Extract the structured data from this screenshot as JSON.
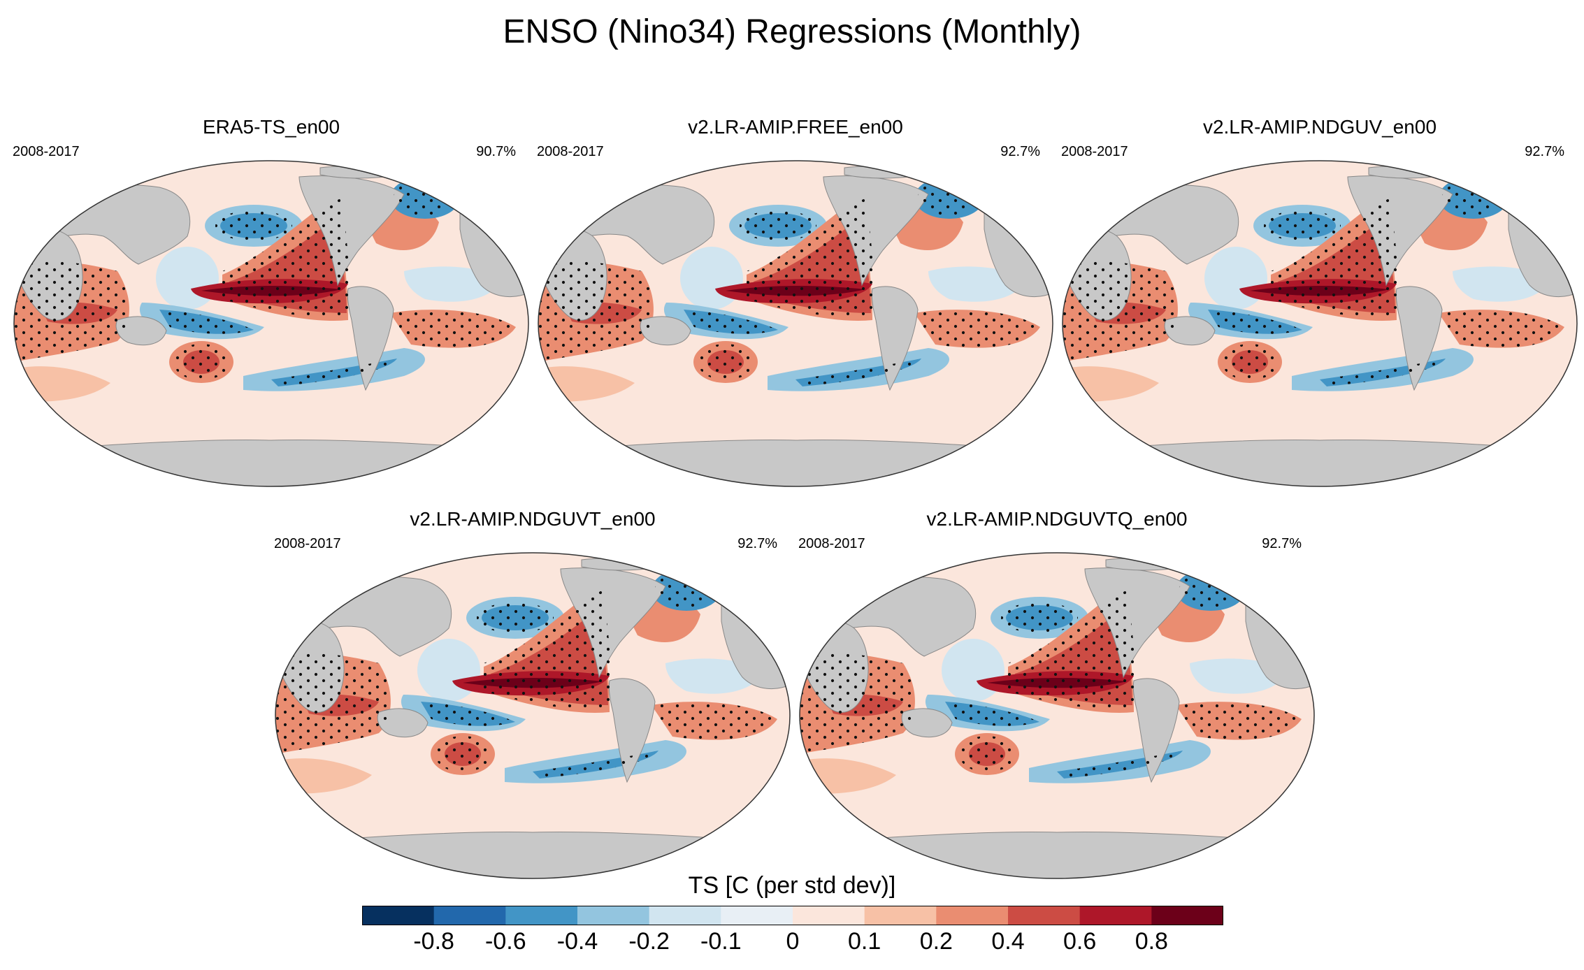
{
  "title": "ENSO (Nino34) Regressions (Monthly)",
  "panels": [
    {
      "name": "ERA5-TS_en00",
      "period": "2008-2017",
      "pct": "90.7%"
    },
    {
      "name": "v2.LR-AMIP.FREE_en00",
      "period": "2008-2017",
      "pct": "92.7%"
    },
    {
      "name": "v2.LR-AMIP.NDGUV_en00",
      "period": "2008-2017",
      "pct": "92.7%"
    },
    {
      "name": "v2.LR-AMIP.NDGUVT_en00",
      "period": "2008-2017",
      "pct": "92.7%"
    },
    {
      "name": "v2.LR-AMIP.NDGUVTQ_en00",
      "period": "2008-2017",
      "pct": "92.7%"
    }
  ],
  "colorbar": {
    "label": "TS [C (per std dev)]",
    "ticks": [
      "-0.8",
      "-0.6",
      "-0.4",
      "-0.2",
      "-0.1",
      "0",
      "0.1",
      "0.2",
      "0.4",
      "0.6",
      "0.8"
    ],
    "colors": [
      "#06305f",
      "#2268ac",
      "#4295c6",
      "#93c5df",
      "#d1e5f0",
      "#e8eff5",
      "#fbe6dc",
      "#f7c1a6",
      "#ea8d71",
      "#cc4c44",
      "#ae1729",
      "#6c0019"
    ]
  },
  "chart_data": {
    "type": "heatmap",
    "title": "ENSO (Nino34) Regressions (Monthly)",
    "variable": "TS [C (per std dev)]",
    "projection": "Robinson-like global map",
    "levels": [
      -0.8,
      -0.6,
      -0.4,
      -0.2,
      -0.1,
      0,
      0.1,
      0.2,
      0.4,
      0.6,
      0.8
    ],
    "panels": [
      "ERA5-TS_en00",
      "v2.LR-AMIP.FREE_en00",
      "v2.LR-AMIP.NDGUV_en00",
      "v2.LR-AMIP.NDGUVT_en00",
      "v2.LR-AMIP.NDGUVTQ_en00"
    ],
    "period": "2008-2017",
    "pattern_correlation": [
      "90.7%",
      "92.7%",
      "92.7%",
      "92.7%",
      "92.7%"
    ],
    "features": {
      "equatorial_pacific_peak": 0.9,
      "north_pacific_anomaly": -0.5,
      "south_pacific_anomaly": -0.5,
      "indian_ocean_anomaly": 0.3,
      "south_pacific_warm_pool": 0.5
    }
  }
}
